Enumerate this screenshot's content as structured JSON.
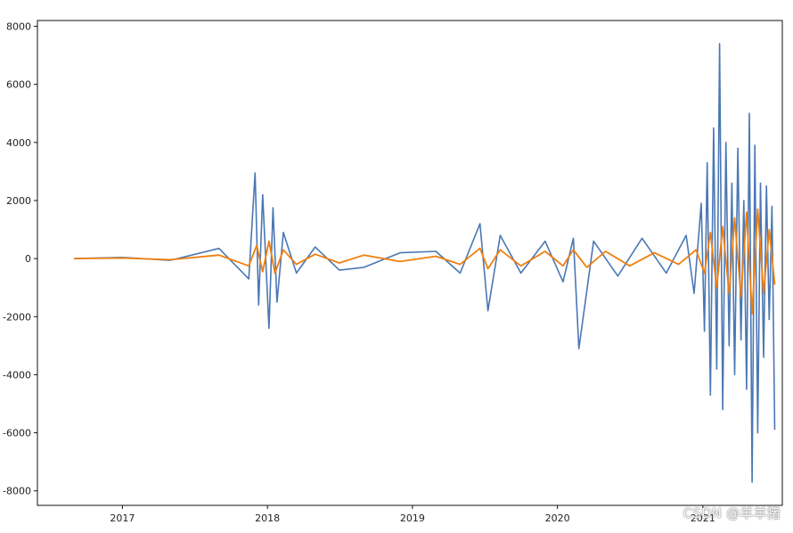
{
  "chart_data": {
    "type": "line",
    "title": "",
    "xlabel": "",
    "ylabel": "",
    "x_ticks": [
      "2017",
      "2018",
      "2019",
      "2020",
      "2021"
    ],
    "x_range": [
      "2016-06-01",
      "2021-07-20"
    ],
    "y_ticks": [
      8000,
      6000,
      4000,
      2000,
      0,
      -2000,
      -4000,
      -6000,
      -8000
    ],
    "ylim": [
      -8500,
      8200
    ],
    "grid": false,
    "legend": "none",
    "series": [
      {
        "color": "#4a77b4",
        "x": [
          "2016-09-01",
          "2017-01-01",
          "2017-05-01",
          "2017-09-01",
          "2017-11-15",
          "2017-12-01",
          "2017-12-10",
          "2017-12-20",
          "2018-01-05",
          "2018-01-15",
          "2018-01-25",
          "2018-02-10",
          "2018-03-15",
          "2018-05-01",
          "2018-07-01",
          "2018-09-01",
          "2018-12-01",
          "2019-03-01",
          "2019-05-01",
          "2019-06-20",
          "2019-07-10",
          "2019-08-10",
          "2019-10-01",
          "2019-12-01",
          "2020-01-15",
          "2020-02-10",
          "2020-02-24",
          "2020-04-01",
          "2020-06-01",
          "2020-08-01",
          "2020-10-01",
          "2020-11-20",
          "2020-12-10",
          "2020-12-28",
          "2021-01-05",
          "2021-01-12",
          "2021-01-20",
          "2021-01-28",
          "2021-02-05",
          "2021-02-12",
          "2021-02-20",
          "2021-02-28",
          "2021-03-08",
          "2021-03-15",
          "2021-03-22",
          "2021-03-30",
          "2021-04-07",
          "2021-04-14",
          "2021-04-21",
          "2021-04-28",
          "2021-05-05",
          "2021-05-12",
          "2021-05-19",
          "2021-05-26",
          "2021-06-03",
          "2021-06-10",
          "2021-06-17",
          "2021-06-24",
          "2021-07-01"
        ],
        "values": [
          0,
          40,
          -60,
          350,
          -700,
          2950,
          -1600,
          2200,
          -2400,
          1750,
          -1500,
          900,
          -500,
          400,
          -400,
          -300,
          200,
          250,
          -500,
          1200,
          -1800,
          800,
          -500,
          600,
          -800,
          700,
          -3100,
          600,
          -600,
          700,
          -500,
          800,
          -1200,
          1900,
          -2500,
          3300,
          -4700,
          4500,
          -3800,
          7400,
          -5200,
          4000,
          -3000,
          2600,
          -4000,
          3800,
          -2800,
          2000,
          -4500,
          5000,
          -7700,
          3900,
          -6000,
          2600,
          -3400,
          2500,
          -2100,
          1800,
          -5900
        ]
      },
      {
        "color": "#f07f0e",
        "x": [
          "2016-09-01",
          "2017-01-01",
          "2017-05-01",
          "2017-09-01",
          "2017-11-15",
          "2017-12-05",
          "2017-12-20",
          "2018-01-05",
          "2018-01-20",
          "2018-02-10",
          "2018-03-15",
          "2018-05-01",
          "2018-07-01",
          "2018-09-01",
          "2018-12-01",
          "2019-03-01",
          "2019-05-01",
          "2019-06-20",
          "2019-07-10",
          "2019-08-10",
          "2019-10-01",
          "2019-12-01",
          "2020-01-15",
          "2020-02-10",
          "2020-03-15",
          "2020-05-01",
          "2020-07-01",
          "2020-09-01",
          "2020-11-01",
          "2020-12-15",
          "2021-01-05",
          "2021-01-20",
          "2021-02-05",
          "2021-02-20",
          "2021-03-08",
          "2021-03-22",
          "2021-04-07",
          "2021-04-21",
          "2021-05-05",
          "2021-05-19",
          "2021-06-03",
          "2021-06-17",
          "2021-07-01"
        ],
        "values": [
          0,
          20,
          -40,
          120,
          -250,
          450,
          -450,
          600,
          -500,
          300,
          -200,
          150,
          -150,
          120,
          -100,
          80,
          -200,
          350,
          -350,
          300,
          -250,
          250,
          -250,
          300,
          -300,
          250,
          -250,
          200,
          -200,
          300,
          -500,
          900,
          -1000,
          1100,
          -1200,
          1400,
          -1300,
          1600,
          -1900,
          1700,
          -1200,
          1000,
          -900
        ]
      }
    ]
  },
  "watermark": "CSDN @羊羊猪"
}
